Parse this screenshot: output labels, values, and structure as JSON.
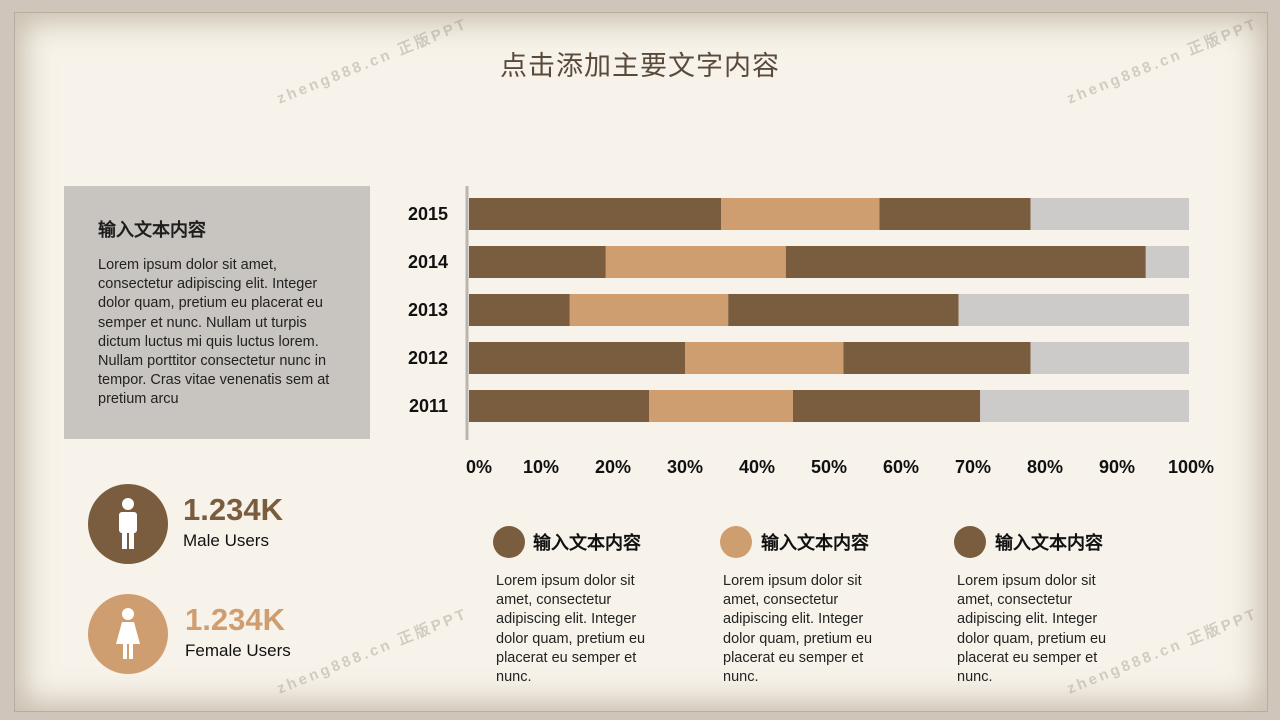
{
  "title": "点击添加主要文字内容",
  "panel": {
    "title": "输入文本内容",
    "body": "Lorem ipsum dolor sit amet, consectetur adipiscing elit. Integer dolor quam, pretium eu placerat eu semper et nunc. Nullam ut turpis dictum luctus mi quis luctus lorem. Nullam porttitor consectetur nunc in tempor. Cras vitae venenatis sem at pretium arcu"
  },
  "stats": [
    {
      "value": "1.234K",
      "label": "Male Users",
      "icon": "male-icon",
      "color": "#7a5c3e"
    },
    {
      "value": "1.234K",
      "label": "Female Users",
      "icon": "female-icon",
      "color": "#cf9e70"
    }
  ],
  "legend": [
    {
      "title": "输入文本内容",
      "body": "Lorem ipsum dolor sit amet, consectetur adipiscing elit. Integer dolor quam, pretium eu placerat eu semper et nunc.",
      "color": "#7a5c3e"
    },
    {
      "title": "输入文本内容",
      "body": "Lorem ipsum dolor sit amet, consectetur adipiscing elit. Integer dolor quam, pretium eu placerat eu semper et nunc.",
      "color": "#cf9e70"
    },
    {
      "title": "输入文本内容",
      "body": "Lorem ipsum dolor sit amet, consectetur adipiscing elit. Integer dolor quam, pretium eu placerat eu semper et nunc.",
      "color": "#7a5c3e"
    }
  ],
  "watermark": "zheng888.cn 正版PPT",
  "chart_data": {
    "type": "bar",
    "orientation": "horizontal",
    "stacked": true,
    "categories": [
      "2015",
      "2014",
      "2013",
      "2012",
      "2011"
    ],
    "series": [
      {
        "values": [
          35,
          19,
          14,
          30,
          25
        ],
        "color": "#7a5c3e"
      },
      {
        "values": [
          22,
          25,
          22,
          22,
          20
        ],
        "color": "#cf9e70"
      },
      {
        "values": [
          21,
          50,
          32,
          26,
          26
        ],
        "color": "#7a5c3e"
      },
      {
        "values": [
          22,
          6,
          32,
          22,
          29
        ],
        "color": "#cccbc9"
      }
    ],
    "xticks": [
      "0%",
      "10%",
      "20%",
      "30%",
      "40%",
      "50%",
      "60%",
      "70%",
      "80%",
      "90%",
      "100%"
    ],
    "xlim": [
      0,
      100
    ],
    "grid": false,
    "legend": "none"
  }
}
